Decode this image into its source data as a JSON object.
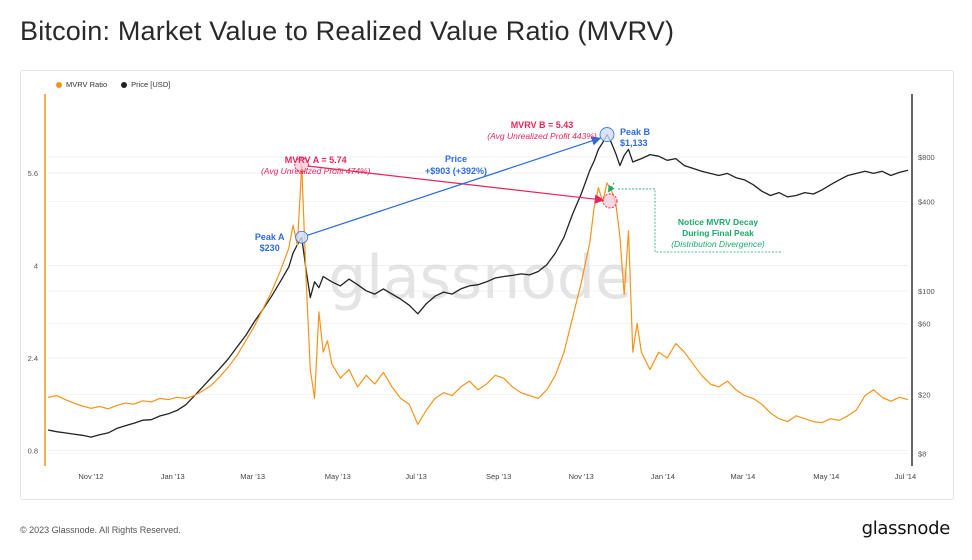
{
  "title": "Bitcoin: Market Value to Realized Value Ratio (MVRV)",
  "legend": [
    {
      "label": "MVRV Ratio",
      "color": "#f7931a"
    },
    {
      "label": "Price [USD]",
      "color": "#222222"
    }
  ],
  "footer": {
    "copyright": "© 2023 Glassnode. All Rights Reserved.",
    "brand": "glassnode"
  },
  "watermark": "glassnode",
  "colors": {
    "mvrv": "#f7931a",
    "price": "#222222",
    "mvrv_annotation": "#e8245a",
    "price_annotation": "#2a6be0",
    "decay_annotation": "#1aa96a"
  },
  "chart_data": {
    "type": "line",
    "x_ticks": [
      "Nov '12",
      "Jan '13",
      "Mar '13",
      "May '13",
      "Jul '13",
      "Sep '13",
      "Nov '13",
      "Jan '14",
      "Mar '14",
      "May '14",
      "Jul '14"
    ],
    "x_tick_pos": [
      0.05,
      0.145,
      0.238,
      0.337,
      0.428,
      0.524,
      0.62,
      0.715,
      0.808,
      0.905,
      0.997
    ],
    "left_axis": {
      "ticks": [
        0.8,
        2.4,
        4,
        5.6
      ],
      "range": [
        0.6,
        6.9
      ]
    },
    "right_axis": {
      "scale": "log",
      "ticks": [
        "$8",
        "$20",
        "$60",
        "$100",
        "$400",
        "$800"
      ],
      "tick_values": [
        8,
        20,
        60,
        100,
        400,
        800
      ],
      "range": [
        7,
        2000
      ]
    },
    "series": [
      {
        "name": "MVRV Ratio",
        "axis": "left",
        "points": [
          [
            0.0,
            1.72
          ],
          [
            0.01,
            1.75
          ],
          [
            0.02,
            1.68
          ],
          [
            0.03,
            1.62
          ],
          [
            0.04,
            1.57
          ],
          [
            0.05,
            1.53
          ],
          [
            0.06,
            1.56
          ],
          [
            0.07,
            1.52
          ],
          [
            0.08,
            1.58
          ],
          [
            0.09,
            1.62
          ],
          [
            0.1,
            1.6
          ],
          [
            0.11,
            1.66
          ],
          [
            0.12,
            1.64
          ],
          [
            0.13,
            1.7
          ],
          [
            0.14,
            1.68
          ],
          [
            0.15,
            1.72
          ],
          [
            0.16,
            1.7
          ],
          [
            0.17,
            1.75
          ],
          [
            0.18,
            1.83
          ],
          [
            0.19,
            1.93
          ],
          [
            0.2,
            2.08
          ],
          [
            0.21,
            2.25
          ],
          [
            0.22,
            2.45
          ],
          [
            0.23,
            2.7
          ],
          [
            0.24,
            2.95
          ],
          [
            0.25,
            3.25
          ],
          [
            0.26,
            3.55
          ],
          [
            0.27,
            3.9
          ],
          [
            0.28,
            4.3
          ],
          [
            0.285,
            4.7
          ],
          [
            0.29,
            4.35
          ],
          [
            0.295,
            5.74
          ],
          [
            0.3,
            3.8
          ],
          [
            0.305,
            2.2
          ],
          [
            0.31,
            1.7
          ],
          [
            0.315,
            3.2
          ],
          [
            0.32,
            2.5
          ],
          [
            0.325,
            2.7
          ],
          [
            0.33,
            2.3
          ],
          [
            0.34,
            2.05
          ],
          [
            0.35,
            2.2
          ],
          [
            0.36,
            1.9
          ],
          [
            0.37,
            2.1
          ],
          [
            0.38,
            1.95
          ],
          [
            0.39,
            2.15
          ],
          [
            0.4,
            1.9
          ],
          [
            0.41,
            1.7
          ],
          [
            0.42,
            1.6
          ],
          [
            0.43,
            1.25
          ],
          [
            0.44,
            1.5
          ],
          [
            0.45,
            1.7
          ],
          [
            0.46,
            1.8
          ],
          [
            0.47,
            1.75
          ],
          [
            0.48,
            1.9
          ],
          [
            0.49,
            2.0
          ],
          [
            0.5,
            1.85
          ],
          [
            0.51,
            1.95
          ],
          [
            0.52,
            2.1
          ],
          [
            0.53,
            2.05
          ],
          [
            0.54,
            1.9
          ],
          [
            0.55,
            1.8
          ],
          [
            0.56,
            1.75
          ],
          [
            0.57,
            1.7
          ],
          [
            0.58,
            1.85
          ],
          [
            0.59,
            2.1
          ],
          [
            0.6,
            2.5
          ],
          [
            0.61,
            3.1
          ],
          [
            0.62,
            3.7
          ],
          [
            0.63,
            4.4
          ],
          [
            0.635,
            5.0
          ],
          [
            0.64,
            5.35
          ],
          [
            0.645,
            5.1
          ],
          [
            0.65,
            5.43
          ],
          [
            0.655,
            5.3
          ],
          [
            0.66,
            5.1
          ],
          [
            0.665,
            4.5
          ],
          [
            0.67,
            3.5
          ],
          [
            0.675,
            4.6
          ],
          [
            0.68,
            2.5
          ],
          [
            0.685,
            3.0
          ],
          [
            0.69,
            2.5
          ],
          [
            0.7,
            2.2
          ],
          [
            0.71,
            2.5
          ],
          [
            0.72,
            2.4
          ],
          [
            0.73,
            2.65
          ],
          [
            0.74,
            2.5
          ],
          [
            0.75,
            2.3
          ],
          [
            0.76,
            2.1
          ],
          [
            0.77,
            1.95
          ],
          [
            0.78,
            1.9
          ],
          [
            0.79,
            2.0
          ],
          [
            0.8,
            1.85
          ],
          [
            0.81,
            1.75
          ],
          [
            0.82,
            1.7
          ],
          [
            0.83,
            1.6
          ],
          [
            0.84,
            1.45
          ],
          [
            0.85,
            1.35
          ],
          [
            0.86,
            1.3
          ],
          [
            0.87,
            1.4
          ],
          [
            0.88,
            1.35
          ],
          [
            0.89,
            1.3
          ],
          [
            0.9,
            1.28
          ],
          [
            0.91,
            1.35
          ],
          [
            0.92,
            1.32
          ],
          [
            0.93,
            1.4
          ],
          [
            0.94,
            1.5
          ],
          [
            0.95,
            1.75
          ],
          [
            0.96,
            1.85
          ],
          [
            0.97,
            1.72
          ],
          [
            0.98,
            1.65
          ],
          [
            0.99,
            1.72
          ],
          [
            1.0,
            1.68
          ]
        ]
      },
      {
        "name": "Price [USD]",
        "axis": "right",
        "points": [
          [
            0.0,
            11.5
          ],
          [
            0.01,
            11.2
          ],
          [
            0.02,
            11.0
          ],
          [
            0.03,
            10.8
          ],
          [
            0.04,
            10.6
          ],
          [
            0.05,
            10.3
          ],
          [
            0.06,
            10.7
          ],
          [
            0.07,
            11.0
          ],
          [
            0.08,
            11.8
          ],
          [
            0.09,
            12.3
          ],
          [
            0.1,
            12.8
          ],
          [
            0.11,
            13.4
          ],
          [
            0.12,
            13.5
          ],
          [
            0.13,
            14.3
          ],
          [
            0.14,
            14.8
          ],
          [
            0.15,
            15.6
          ],
          [
            0.16,
            17.0
          ],
          [
            0.17,
            19.5
          ],
          [
            0.18,
            22.5
          ],
          [
            0.19,
            26
          ],
          [
            0.2,
            30
          ],
          [
            0.21,
            35
          ],
          [
            0.22,
            42
          ],
          [
            0.23,
            50
          ],
          [
            0.24,
            62
          ],
          [
            0.25,
            75
          ],
          [
            0.26,
            92
          ],
          [
            0.27,
            115
          ],
          [
            0.28,
            145
          ],
          [
            0.285,
            180
          ],
          [
            0.29,
            205
          ],
          [
            0.295,
            230
          ],
          [
            0.3,
            140
          ],
          [
            0.305,
            90
          ],
          [
            0.31,
            115
          ],
          [
            0.315,
            105
          ],
          [
            0.32,
            125
          ],
          [
            0.33,
            115
          ],
          [
            0.34,
            108
          ],
          [
            0.35,
            120
          ],
          [
            0.36,
            110
          ],
          [
            0.37,
            100
          ],
          [
            0.38,
            95
          ],
          [
            0.39,
            103
          ],
          [
            0.4,
            95
          ],
          [
            0.41,
            88
          ],
          [
            0.42,
            80
          ],
          [
            0.43,
            70
          ],
          [
            0.44,
            82
          ],
          [
            0.45,
            92
          ],
          [
            0.46,
            98
          ],
          [
            0.47,
            95
          ],
          [
            0.48,
            103
          ],
          [
            0.49,
            108
          ],
          [
            0.5,
            110
          ],
          [
            0.51,
            115
          ],
          [
            0.52,
            122
          ],
          [
            0.53,
            125
          ],
          [
            0.54,
            127
          ],
          [
            0.55,
            130
          ],
          [
            0.56,
            128
          ],
          [
            0.57,
            135
          ],
          [
            0.58,
            150
          ],
          [
            0.59,
            180
          ],
          [
            0.6,
            230
          ],
          [
            0.61,
            330
          ],
          [
            0.62,
            450
          ],
          [
            0.63,
            650
          ],
          [
            0.635,
            750
          ],
          [
            0.64,
            900
          ],
          [
            0.645,
            1000
          ],
          [
            0.65,
            1133
          ],
          [
            0.655,
            1000
          ],
          [
            0.66,
            850
          ],
          [
            0.665,
            700
          ],
          [
            0.67,
            820
          ],
          [
            0.675,
            900
          ],
          [
            0.68,
            740
          ],
          [
            0.69,
            780
          ],
          [
            0.7,
            830
          ],
          [
            0.71,
            810
          ],
          [
            0.72,
            760
          ],
          [
            0.73,
            780
          ],
          [
            0.74,
            700
          ],
          [
            0.75,
            670
          ],
          [
            0.76,
            640
          ],
          [
            0.77,
            620
          ],
          [
            0.78,
            600
          ],
          [
            0.79,
            620
          ],
          [
            0.8,
            580
          ],
          [
            0.81,
            560
          ],
          [
            0.82,
            520
          ],
          [
            0.83,
            470
          ],
          [
            0.84,
            440
          ],
          [
            0.85,
            460
          ],
          [
            0.86,
            430
          ],
          [
            0.87,
            440
          ],
          [
            0.88,
            460
          ],
          [
            0.89,
            450
          ],
          [
            0.9,
            480
          ],
          [
            0.91,
            520
          ],
          [
            0.92,
            560
          ],
          [
            0.93,
            600
          ],
          [
            0.94,
            620
          ],
          [
            0.95,
            640
          ],
          [
            0.96,
            620
          ],
          [
            0.97,
            640
          ],
          [
            0.98,
            600
          ],
          [
            0.99,
            630
          ],
          [
            1.0,
            650
          ]
        ]
      }
    ],
    "annotations": {
      "mvrv_a": {
        "title": "MVRV A = 5.74",
        "subtitle": "(Avg Unrealized Profit 474%)"
      },
      "mvrv_b": {
        "title": "MVRV B = 5.43",
        "subtitle": "(Avg Unrealized Profit 443%)"
      },
      "peak_a": {
        "label": "Peak A",
        "value": "$230"
      },
      "peak_b": {
        "label": "Peak B",
        "value": "$1,133"
      },
      "price_change": {
        "label": "Price",
        "value": "+$903 (+392%)"
      },
      "decay": {
        "line1": "Notice MVRV Decay",
        "line2": "During Final Peak",
        "line3": "(Distribution Divergence)"
      }
    }
  }
}
